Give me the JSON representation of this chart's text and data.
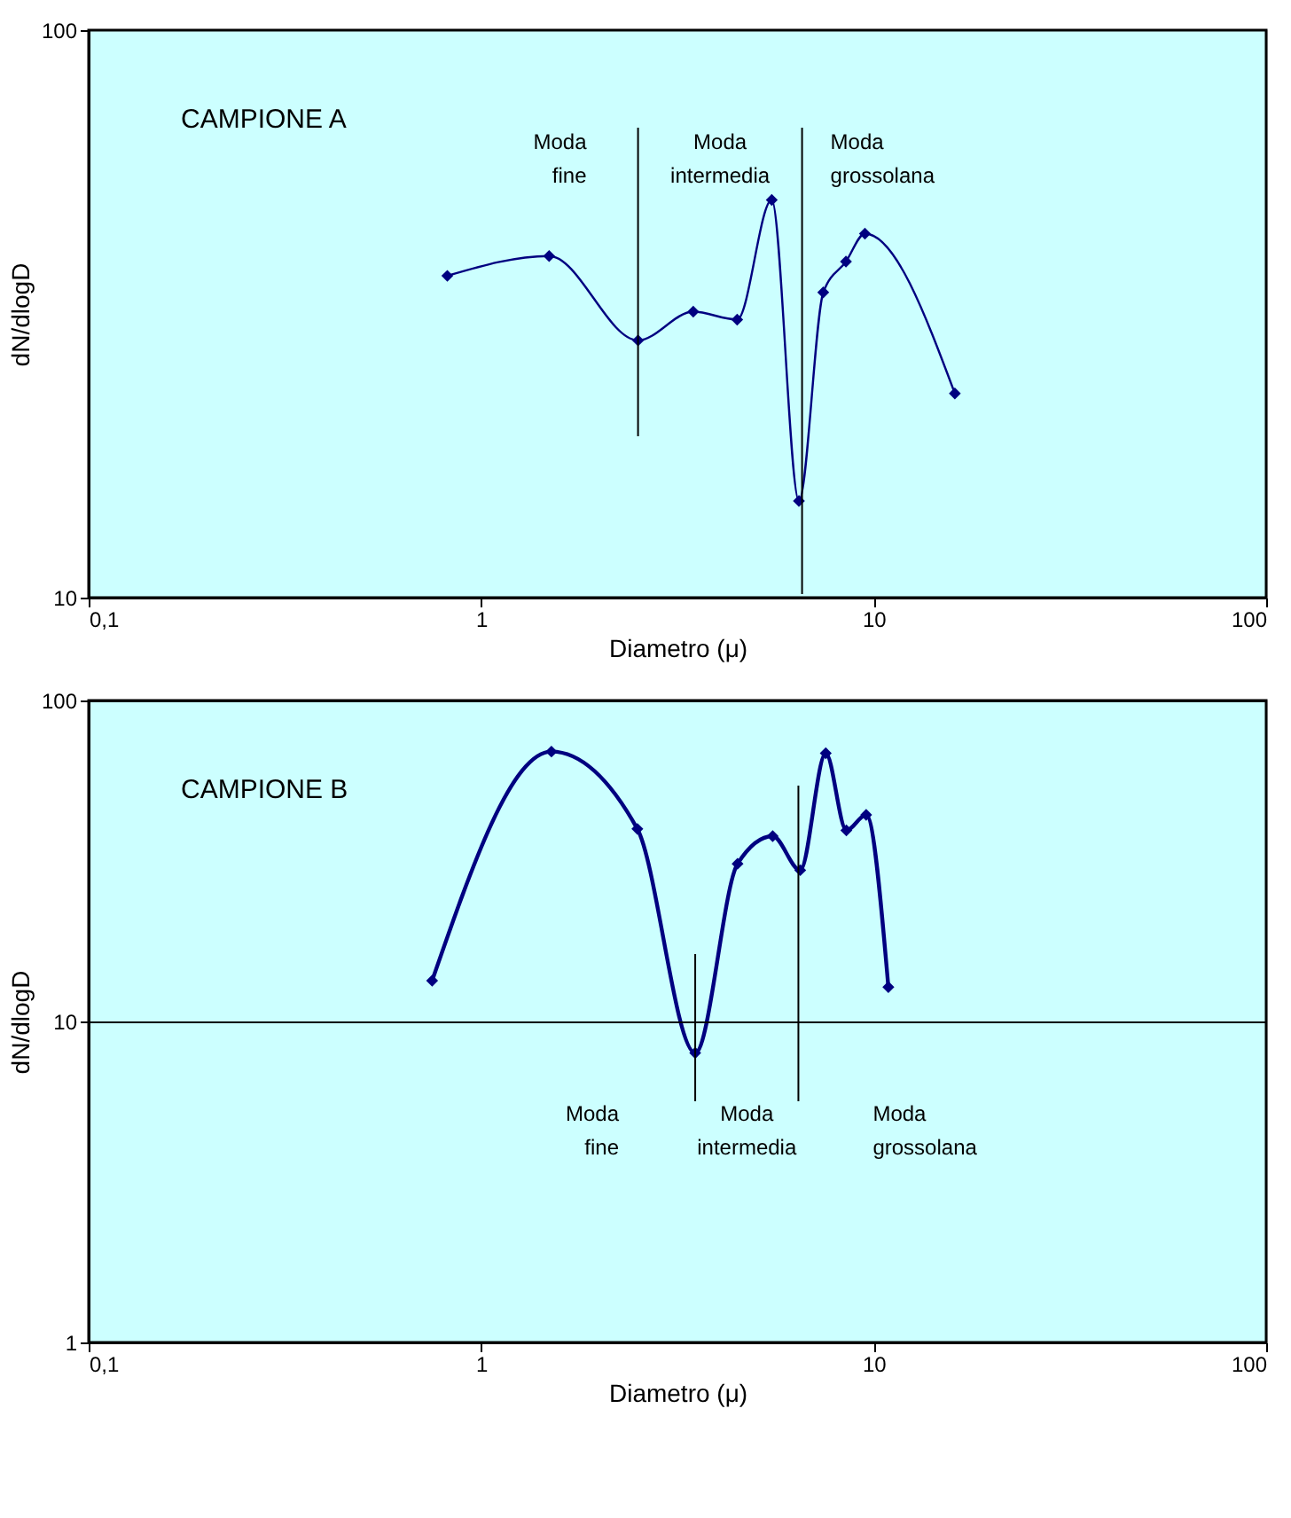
{
  "chart_data": [
    {
      "type": "line",
      "title": "CAMPIONE A",
      "xlabel": "Diametro (μ)",
      "ylabel": "dN/dlogD",
      "log": "xy",
      "marker": "diamond",
      "line_style": "solid",
      "grid": false,
      "x": [
        0.82,
        1.49,
        2.51,
        3.47,
        4.49,
        5.5,
        6.45,
        7.44,
        8.5,
        9.5,
        16.1
      ],
      "series": [
        {
          "color": "#000080",
          "values": [
            36.9,
            40,
            28.4,
            31.9,
            30.9,
            50.2,
            14.8,
            34.5,
            39.1,
            43.8,
            22.9
          ]
        }
      ],
      "xlim": [
        0.1,
        100
      ],
      "xticks": [
        {
          "value": 0.1,
          "label": "0,1"
        },
        1,
        10,
        100
      ],
      "ylim": [
        10,
        100
      ],
      "yticks": [
        10,
        100
      ],
      "ref_lines": [
        {
          "axis": "x",
          "value": 2.51,
          "color": "#000000"
        },
        {
          "axis": "x",
          "value": 6.57,
          "color": "#000000"
        }
      ],
      "annotations": [
        "Moda fine",
        "Moda intermedia",
        "Moda grossolana"
      ]
    },
    {
      "type": "line",
      "title": "CAMPIONE B",
      "xlabel": "Diametro (μ)",
      "ylabel": "dN/dlogD",
      "log": "xy",
      "marker": "diamond",
      "line_style": "solid",
      "grid": "y",
      "x": [
        0.75,
        1.51,
        2.5,
        3.51,
        4.5,
        5.53,
        6.5,
        7.55,
        8.52,
        9.57,
        10.9
      ],
      "series": [
        {
          "color": "#000080",
          "values": [
            13.4,
            69.3,
            39.8,
            7.98,
            31,
            37.8,
            29.6,
            68.5,
            39.4,
            44,
            12.8
          ]
        }
      ],
      "xlim": [
        0.1,
        100
      ],
      "xticks": [
        {
          "value": 0.1,
          "label": "0,1"
        },
        1,
        10,
        100
      ],
      "ylim": [
        1,
        100
      ],
      "yticks": [
        1,
        10,
        100
      ],
      "ref_lines": [
        {
          "axis": "x",
          "value": 3.51,
          "color": "#000000"
        },
        {
          "axis": "x",
          "value": 6.43,
          "color": "#000000"
        }
      ],
      "annotations": [
        "Moda fine",
        "Moda intermedia",
        "Moda grossolana"
      ]
    }
  ]
}
